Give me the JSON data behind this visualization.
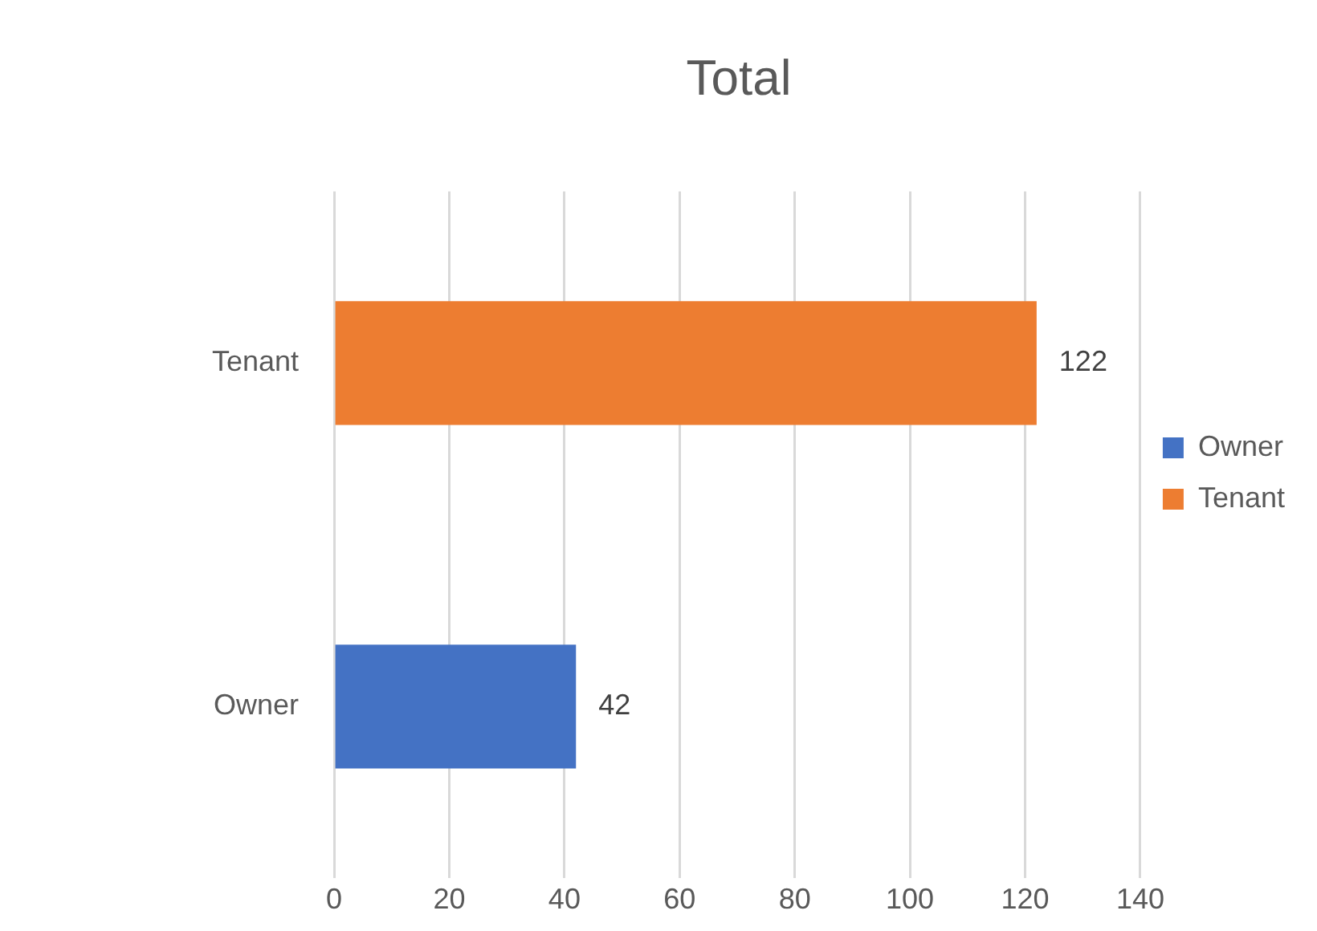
{
  "chart_data": {
    "type": "bar",
    "orientation": "horizontal",
    "title": "Total",
    "categories": [
      "Tenant",
      "Owner"
    ],
    "series": [
      {
        "name": "Owner",
        "color": "#4472c4",
        "values": [
          null,
          42
        ]
      },
      {
        "name": "Tenant",
        "color": "#ed7d31",
        "values": [
          122,
          null
        ]
      }
    ],
    "stacked": true,
    "xlim": [
      0,
      140
    ],
    "xticks": [
      0,
      20,
      40,
      60,
      80,
      100,
      120,
      140
    ],
    "grid": "x",
    "legend": "right",
    "data_labels": true
  }
}
